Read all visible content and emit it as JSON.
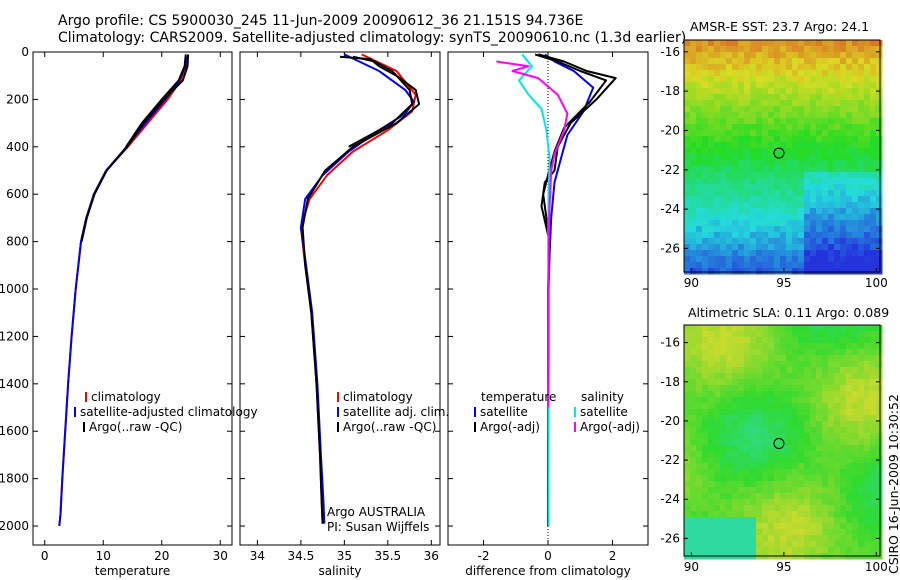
{
  "title": {
    "line1": "Argo profile: CS 5900030_245 11-Jun-2009 20090612_36 21.151S 94.736E",
    "line2": "Climatology: CARS2009. Satellite-adjusted climatology: synTS_20090610.nc (1.3d earlier)"
  },
  "credit": "CSIRO 16-Jun-2009 10:30:52",
  "colors": {
    "climatology": "#ff0000",
    "satellite": "#0000ff",
    "argo": "#000000",
    "satellite_salinity": "#00e5ee",
    "argo_salinity_adj": "#ff00ff"
  },
  "chart_data": [
    {
      "type": "line",
      "id": "temperature",
      "xlabel": "temperature",
      "ylabel": "",
      "xlim": [
        -2,
        32
      ],
      "ylim": [
        2080,
        0
      ],
      "xticks": [
        0,
        10,
        20,
        30
      ],
      "yticks": [
        0,
        200,
        400,
        600,
        800,
        1000,
        1200,
        1400,
        1600,
        1800,
        2000
      ],
      "legend": {
        "position": "lower-left",
        "entries": [
          "climatology",
          "satellite-adjusted climatology",
          "Argo(..raw -QC)"
        ]
      },
      "series": [
        {
          "name": "climatology",
          "color": "#ff0000",
          "x": [
            24.3,
            24.1,
            23.2,
            21.0,
            17.6,
            14.2,
            10.5,
            8.4,
            7.1,
            6.2,
            5.3,
            4.6,
            4.0,
            3.5,
            3.0,
            2.7,
            2.5
          ],
          "y": [
            20,
            60,
            120,
            200,
            300,
            400,
            500,
            600,
            700,
            800,
            1000,
            1200,
            1400,
            1600,
            1800,
            1950,
            2000
          ]
        },
        {
          "name": "satellite-adjusted climatology",
          "color": "#0000ff",
          "x": [
            24.2,
            24.0,
            23.0,
            20.6,
            17.2,
            14.0,
            10.5,
            8.4,
            7.1,
            6.2,
            5.3,
            4.6,
            4.0,
            3.5,
            3.0,
            2.7,
            2.5
          ],
          "y": [
            20,
            60,
            120,
            200,
            300,
            400,
            500,
            600,
            700,
            800,
            1000,
            1200,
            1400,
            1600,
            1800,
            1950,
            2000
          ]
        },
        {
          "name": "Argo(..raw -QC)",
          "color": "#000000",
          "x": [
            24.5,
            24.4,
            23.6,
            20.4,
            16.9,
            14.1,
            10.6,
            8.5,
            7.2,
            6.3
          ],
          "y": [
            10,
            60,
            120,
            200,
            300,
            400,
            500,
            600,
            700,
            800
          ]
        },
        {
          "name": "Argo(..raw -QC)",
          "color": "#000000",
          "x": [
            24.1,
            23.9,
            22.9,
            20.0,
            16.6,
            13.9
          ],
          "y": [
            10,
            60,
            120,
            200,
            300,
            400
          ]
        }
      ]
    },
    {
      "type": "line",
      "id": "salinity",
      "xlabel": "salinity",
      "ylabel": "",
      "xlim": [
        33.8,
        36.1
      ],
      "ylim": [
        2080,
        0
      ],
      "xticks": [
        34,
        34.5,
        35,
        35.5,
        36
      ],
      "yticks": [],
      "legend": {
        "position": "lower-right",
        "entries": [
          "climatology",
          "satellite adj. clim.",
          "Argo(..raw -QC)"
        ]
      },
      "annotations": [
        "Argo AUSTRALIA",
        "PI: Susan Wijffels"
      ],
      "series": [
        {
          "name": "climatology",
          "color": "#ff0000",
          "x": [
            35.2,
            35.6,
            35.82,
            35.78,
            35.5,
            35.1,
            34.8,
            34.6,
            34.5,
            34.55,
            34.62,
            34.68,
            34.72,
            34.74,
            34.75
          ],
          "y": [
            10,
            80,
            180,
            250,
            330,
            420,
            520,
            620,
            740,
            900,
            1100,
            1400,
            1700,
            1900,
            1990
          ]
        },
        {
          "name": "satellite adj. clim.",
          "color": "#0000ff",
          "x": [
            35.0,
            35.4,
            35.7,
            35.8,
            35.7,
            35.4,
            35.05,
            34.75,
            34.55,
            34.5,
            34.56,
            34.63,
            34.69,
            34.73,
            34.76,
            34.77
          ],
          "y": [
            10,
            80,
            160,
            210,
            260,
            330,
            420,
            520,
            620,
            740,
            900,
            1100,
            1400,
            1700,
            1900,
            1990
          ]
        },
        {
          "name": "Argo(..raw -QC)",
          "color": "#000000",
          "x": [
            34.95,
            35.3,
            35.4,
            35.6,
            35.82,
            35.86,
            35.6,
            35.1,
            34.78,
            34.58,
            34.52,
            34.55,
            34.62,
            34.68,
            34.72,
            34.74,
            34.75
          ],
          "y": [
            20,
            30,
            60,
            100,
            160,
            220,
            300,
            400,
            500,
            620,
            740,
            900,
            1100,
            1400,
            1700,
            1900,
            1990
          ]
        },
        {
          "name": "Argo(..raw -QC)",
          "color": "#000000",
          "x": [
            35.1,
            35.35,
            35.55,
            35.75,
            35.78,
            35.55,
            35.05
          ],
          "y": [
            20,
            40,
            80,
            160,
            220,
            300,
            400
          ]
        }
      ]
    },
    {
      "type": "line",
      "id": "difference",
      "xlabel": "difference from climatology",
      "ylabel": "",
      "xlim": [
        -3.1,
        3.1
      ],
      "ylim": [
        2080,
        0
      ],
      "xticks": [
        -2,
        0,
        2
      ],
      "yticks": [],
      "legend": {
        "position": "lower",
        "groups": [
          {
            "title": "temperature",
            "entries": [
              "satellite",
              "Argo(-adj)"
            ]
          },
          {
            "title": "salinity",
            "entries": [
              "satellite",
              "Argo(-adj)"
            ]
          }
        ]
      },
      "series": [
        {
          "name": "temperature satellite",
          "color": "#0000ff",
          "x": [
            -0.1,
            0.2,
            0.8,
            1.4,
            1.1,
            0.6,
            0.4,
            0.2,
            0.1,
            0.05,
            0.02,
            0.02,
            0.01,
            0.01
          ],
          "y": [
            10,
            40,
            80,
            150,
            250,
            350,
            450,
            550,
            700,
            850,
            1000,
            1300,
            1700,
            2000
          ]
        },
        {
          "name": "temperature Argo(-adj)",
          "color": "#000000",
          "x": [
            -0.3,
            0.5,
            1.2,
            2.1,
            1.5,
            0.7,
            0.3,
            0.2,
            -0.1,
            -0.2,
            0.05,
            0.0,
            0.0,
            0.0,
            0.0
          ],
          "y": [
            10,
            40,
            80,
            110,
            200,
            300,
            400,
            500,
            550,
            650,
            800,
            1000,
            1300,
            1700,
            2000
          ]
        },
        {
          "name": "temperature Argo(-adj)",
          "color": "#000000",
          "x": [
            -0.4,
            0.3,
            1.0,
            1.8,
            1.3,
            0.5,
            0.2,
            0.0,
            -0.15,
            0.0
          ],
          "y": [
            10,
            40,
            80,
            120,
            210,
            320,
            420,
            520,
            600,
            750
          ]
        },
        {
          "name": "salinity satellite",
          "color": "#00e5ee",
          "x": [
            -0.8,
            -0.5,
            -0.9,
            -0.6,
            -0.2,
            -0.05,
            0.05,
            0.02,
            0.01,
            0.01,
            0.02
          ],
          "y": [
            10,
            60,
            120,
            180,
            240,
            330,
            450,
            600,
            800,
            1200,
            2000
          ]
        },
        {
          "name": "salinity Argo(-adj)",
          "color": "#ff00ff",
          "x": [
            -1.6,
            -0.6,
            -1.1,
            -0.3,
            0.3,
            0.6,
            0.5,
            0.2,
            0.1,
            0.05,
            0.02,
            0.01,
            0.0
          ],
          "y": [
            40,
            60,
            80,
            110,
            180,
            260,
            330,
            430,
            500,
            650,
            800,
            1100,
            1500
          ]
        }
      ]
    },
    {
      "type": "heatmap",
      "id": "sst_map",
      "title": "AMSR-E SST: 23.7 Argo: 24.1",
      "xlim": [
        89.6,
        100.2
      ],
      "ylim": [
        -27.2,
        -15.4
      ],
      "xticks": [
        90,
        95,
        100
      ],
      "yticks": [
        -16,
        -18,
        -20,
        -22,
        -24,
        -26
      ],
      "marker": {
        "lon": 94.736,
        "lat": -21.151
      }
    },
    {
      "type": "heatmap",
      "id": "sla_map",
      "title": "Altimetric SLA: 0.11 Argo: 0.089",
      "xlim": [
        89.6,
        100.2
      ],
      "ylim": [
        -26.9,
        -15.1
      ],
      "xticks": [
        90,
        95,
        100
      ],
      "yticks": [
        -16,
        -18,
        -20,
        -22,
        -24,
        -26
      ],
      "marker": {
        "lon": 94.736,
        "lat": -21.151
      }
    }
  ]
}
